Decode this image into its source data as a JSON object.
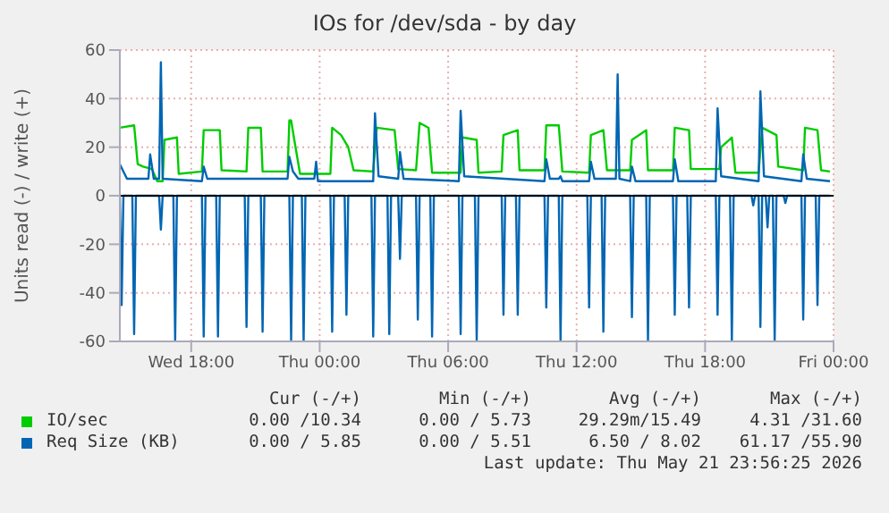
{
  "chart_data": {
    "type": "line",
    "title": "IOs for /dev/sda - by day",
    "ylabel": "Units read (-) / write (+)",
    "xlim": [
      "2026-05-20T14:40",
      "2026-05-22T00:00"
    ],
    "xticks": [
      {
        "value": "2026-05-20T18:00",
        "label": "Wed 18:00"
      },
      {
        "value": "2026-05-21T00:00",
        "label": "Thu 00:00"
      },
      {
        "value": "2026-05-21T06:00",
        "label": "Thu 06:00"
      },
      {
        "value": "2026-05-21T12:00",
        "label": "Thu 12:00"
      },
      {
        "value": "2026-05-21T18:00",
        "label": "Thu 18:00"
      },
      {
        "value": "2026-05-22T00:00",
        "label": "Fri 00:00"
      }
    ],
    "ylim": [
      -60,
      60
    ],
    "yticks": [
      -60,
      -40,
      -20,
      0,
      20,
      40,
      60
    ],
    "grid": true,
    "legend": "bottom",
    "ref_lines": [
      {
        "axis": "y",
        "value": 0,
        "color": "#000000"
      }
    ],
    "series": [
      {
        "name": "IO/sec",
        "color": "#00cc00",
        "x": [
          "2026-05-20T14:40",
          "2026-05-20T15:20",
          "2026-05-20T15:30",
          "2026-05-20T15:45",
          "2026-05-20T16:10",
          "2026-05-20T16:25",
          "2026-05-20T16:40",
          "2026-05-20T16:45",
          "2026-05-20T17:20",
          "2026-05-20T17:25",
          "2026-05-20T18:30",
          "2026-05-20T18:35",
          "2026-05-20T19:20",
          "2026-05-20T19:25",
          "2026-05-20T20:35",
          "2026-05-20T20:40",
          "2026-05-20T21:15",
          "2026-05-20T21:20",
          "2026-05-20T22:30",
          "2026-05-20T22:35",
          "2026-05-20T22:40",
          "2026-05-20T22:50",
          "2026-05-20T23:05",
          "2026-05-21T00:30",
          "2026-05-21T00:35",
          "2026-05-21T01:00",
          "2026-05-21T01:20",
          "2026-05-21T01:35",
          "2026-05-21T02:30",
          "2026-05-21T02:40",
          "2026-05-21T03:30",
          "2026-05-21T03:40",
          "2026-05-21T04:30",
          "2026-05-21T04:40",
          "2026-05-21T05:05",
          "2026-05-21T05:15",
          "2026-05-21T06:35",
          "2026-05-21T06:40",
          "2026-05-21T07:20",
          "2026-05-21T07:25",
          "2026-05-21T08:30",
          "2026-05-21T08:35",
          "2026-05-21T09:15",
          "2026-05-21T09:20",
          "2026-05-21T10:30",
          "2026-05-21T10:35",
          "2026-05-21T11:10",
          "2026-05-21T11:20",
          "2026-05-21T12:35",
          "2026-05-21T12:40",
          "2026-05-21T13:15",
          "2026-05-21T13:25",
          "2026-05-21T14:30",
          "2026-05-21T14:35",
          "2026-05-21T15:15",
          "2026-05-21T15:20",
          "2026-05-21T16:30",
          "2026-05-21T16:35",
          "2026-05-21T17:15",
          "2026-05-21T17:20",
          "2026-05-21T18:40",
          "2026-05-21T18:45",
          "2026-05-21T19:15",
          "2026-05-21T19:25",
          "2026-05-21T20:30",
          "2026-05-21T20:40",
          "2026-05-21T21:20",
          "2026-05-21T21:25",
          "2026-05-21T22:35",
          "2026-05-21T22:40",
          "2026-05-21T23:15",
          "2026-05-21T23:25",
          "2026-05-21T23:50"
        ],
        "values": [
          28,
          29,
          13,
          12,
          11,
          6,
          6,
          23,
          24,
          9,
          10,
          27,
          27,
          10.5,
          10,
          28,
          28,
          10,
          10,
          31,
          31,
          22,
          9,
          9,
          28,
          25,
          20,
          10.5,
          10,
          28,
          27,
          11,
          10.5,
          30,
          28,
          9.5,
          9.5,
          24,
          23,
          9.5,
          10,
          25,
          27,
          10.5,
          10.5,
          29,
          29,
          10,
          9.5,
          25,
          27,
          10.5,
          10.5,
          23,
          27,
          10.5,
          10.5,
          28,
          27,
          11,
          11,
          20,
          24,
          9.5,
          9.5,
          28,
          25,
          12,
          10.5,
          28,
          27,
          10.5,
          10
        ]
      },
      {
        "name": "Req Size (KB)",
        "color": "#0066b3",
        "x": [
          "2026-05-20T14:40",
          "2026-05-20T15:00",
          "2026-05-20T16:00",
          "2026-05-20T16:05",
          "2026-05-20T16:15",
          "2026-05-20T16:30",
          "2026-05-20T16:35",
          "2026-05-20T16:40",
          "2026-05-20T18:30",
          "2026-05-20T18:35",
          "2026-05-20T18:45",
          "2026-05-20T22:30",
          "2026-05-20T22:35",
          "2026-05-20T22:45",
          "2026-05-20T23:00",
          "2026-05-20T23:45",
          "2026-05-20T23:50",
          "2026-05-20T23:55",
          "2026-05-21T02:30",
          "2026-05-21T02:35",
          "2026-05-21T02:45",
          "2026-05-21T03:40",
          "2026-05-21T03:45",
          "2026-05-21T03:55",
          "2026-05-21T06:30",
          "2026-05-21T06:35",
          "2026-05-21T06:45",
          "2026-05-21T10:30",
          "2026-05-21T10:35",
          "2026-05-21T10:45",
          "2026-05-21T11:10",
          "2026-05-21T11:15",
          "2026-05-21T11:20",
          "2026-05-21T12:35",
          "2026-05-21T12:40",
          "2026-05-21T12:50",
          "2026-05-21T13:50",
          "2026-05-21T13:55",
          "2026-05-21T14:00",
          "2026-05-21T14:30",
          "2026-05-21T14:35",
          "2026-05-21T14:45",
          "2026-05-21T16:30",
          "2026-05-21T16:35",
          "2026-05-21T16:45",
          "2026-05-21T18:30",
          "2026-05-21T18:35",
          "2026-05-21T18:45",
          "2026-05-21T20:30",
          "2026-05-21T20:35",
          "2026-05-21T20:45",
          "2026-05-21T22:30",
          "2026-05-21T22:35",
          "2026-05-21T22:45",
          "2026-05-21T23:50"
        ],
        "values": [
          13,
          7,
          7,
          17,
          7,
          7,
          55,
          7,
          6,
          12,
          7,
          7,
          16,
          10,
          7,
          7,
          14,
          6,
          6,
          34,
          8,
          7,
          18,
          7,
          6,
          35,
          8,
          6,
          15,
          7,
          7,
          8,
          6,
          6,
          14,
          7,
          7,
          50,
          7,
          6,
          12,
          6,
          6,
          15,
          6,
          6,
          36,
          8,
          6,
          43,
          8,
          6,
          17,
          7,
          6
        ]
      },
      {
        "color": "#0066b3",
        "x": [
          "2026-05-20T14:40",
          "2026-05-20T14:45",
          "2026-05-20T14:50",
          "2026-05-20T15:15",
          "2026-05-20T15:20",
          "2026-05-20T15:25",
          "2026-05-20T16:30",
          "2026-05-20T16:35",
          "2026-05-20T16:40",
          "2026-05-20T17:10",
          "2026-05-20T17:15",
          "2026-05-20T17:20",
          "2026-05-20T18:30",
          "2026-05-20T18:35",
          "2026-05-20T18:40",
          "2026-05-20T19:10",
          "2026-05-20T19:15",
          "2026-05-20T19:20",
          "2026-05-20T20:30",
          "2026-05-20T20:35",
          "2026-05-20T20:40",
          "2026-05-20T21:15",
          "2026-05-20T21:20",
          "2026-05-20T21:25",
          "2026-05-20T22:35",
          "2026-05-20T22:40",
          "2026-05-20T22:45",
          "2026-05-20T23:10",
          "2026-05-20T23:15",
          "2026-05-20T23:20",
          "2026-05-21T00:30",
          "2026-05-21T00:35",
          "2026-05-21T00:40",
          "2026-05-21T01:10",
          "2026-05-21T01:15",
          "2026-05-21T01:20",
          "2026-05-21T02:25",
          "2026-05-21T02:30",
          "2026-05-21T02:35",
          "2026-05-21T03:10",
          "2026-05-21T03:15",
          "2026-05-21T03:20",
          "2026-05-21T03:40",
          "2026-05-21T03:45",
          "2026-05-21T03:50",
          "2026-05-21T04:30",
          "2026-05-21T04:35",
          "2026-05-21T04:40",
          "2026-05-21T05:10",
          "2026-05-21T05:15",
          "2026-05-21T05:20",
          "2026-05-21T06:30",
          "2026-05-21T06:35",
          "2026-05-21T06:40",
          "2026-05-21T07:15",
          "2026-05-21T07:20",
          "2026-05-21T07:25",
          "2026-05-21T08:30",
          "2026-05-21T08:35",
          "2026-05-21T08:40",
          "2026-05-21T09:10",
          "2026-05-21T09:15",
          "2026-05-21T09:20",
          "2026-05-21T10:30",
          "2026-05-21T10:35",
          "2026-05-21T10:40",
          "2026-05-21T11:10",
          "2026-05-21T11:15",
          "2026-05-21T11:20",
          "2026-05-21T12:30",
          "2026-05-21T12:35",
          "2026-05-21T12:40",
          "2026-05-21T13:10",
          "2026-05-21T13:15",
          "2026-05-21T13:20",
          "2026-05-21T14:30",
          "2026-05-21T14:35",
          "2026-05-21T14:40",
          "2026-05-21T15:15",
          "2026-05-21T15:20",
          "2026-05-21T15:25",
          "2026-05-21T16:30",
          "2026-05-21T16:35",
          "2026-05-21T16:40",
          "2026-05-21T17:10",
          "2026-05-21T17:15",
          "2026-05-21T17:20",
          "2026-05-21T18:30",
          "2026-05-21T18:35",
          "2026-05-21T18:40",
          "2026-05-21T19:10",
          "2026-05-21T19:15",
          "2026-05-21T19:20",
          "2026-05-21T20:10",
          "2026-05-21T20:15",
          "2026-05-21T20:20",
          "2026-05-21T20:30",
          "2026-05-21T20:35",
          "2026-05-21T20:40",
          "2026-05-21T20:50",
          "2026-05-21T20:55",
          "2026-05-21T21:00",
          "2026-05-21T21:10",
          "2026-05-21T21:15",
          "2026-05-21T21:20",
          "2026-05-21T21:40",
          "2026-05-21T21:45",
          "2026-05-21T21:50",
          "2026-05-21T22:30",
          "2026-05-21T22:35",
          "2026-05-21T22:40",
          "2026-05-21T23:10",
          "2026-05-21T23:15",
          "2026-05-21T23:20",
          "2026-05-21T23:50"
        ],
        "values": [
          0,
          -45,
          0,
          0,
          -57,
          0,
          0,
          -14,
          0,
          0,
          -60,
          0,
          0,
          -58,
          0,
          0,
          -58,
          0,
          0,
          -54,
          0,
          0,
          -56,
          0,
          0,
          -60,
          0,
          0,
          -60,
          0,
          0,
          -56,
          0,
          0,
          -49,
          0,
          0,
          -58,
          0,
          0,
          -57,
          0,
          0,
          -26,
          0,
          0,
          -51,
          0,
          0,
          -58,
          0,
          0,
          -57,
          0,
          0,
          -60,
          0,
          0,
          -49,
          0,
          0,
          -49,
          0,
          0,
          -46,
          0,
          0,
          -60,
          0,
          0,
          -46,
          0,
          0,
          -56,
          0,
          0,
          -50,
          0,
          0,
          -60,
          0,
          0,
          -49,
          0,
          0,
          -46,
          0,
          0,
          -49,
          0,
          0,
          -60,
          0,
          0,
          -4,
          0,
          0,
          -54,
          0,
          0,
          -13,
          0,
          0,
          -60,
          0,
          0,
          -3,
          0,
          0,
          -51,
          0,
          0,
          -45,
          0,
          0
        ]
      }
    ],
    "annotations": [
      "Cur (-/+)",
      "Min (-/+)",
      "Avg (-/+)",
      "Max (-/+)",
      "0.00 /10.34",
      "0.00 / 5.73",
      "29.29m/15.49",
      "4.31 /31.60",
      "0.00 / 5.85",
      "0.00 / 5.51",
      "6.50 / 8.02",
      "61.17 /55.90",
      "Last update: Thu May 21 23:56:25 2026"
    ]
  }
}
